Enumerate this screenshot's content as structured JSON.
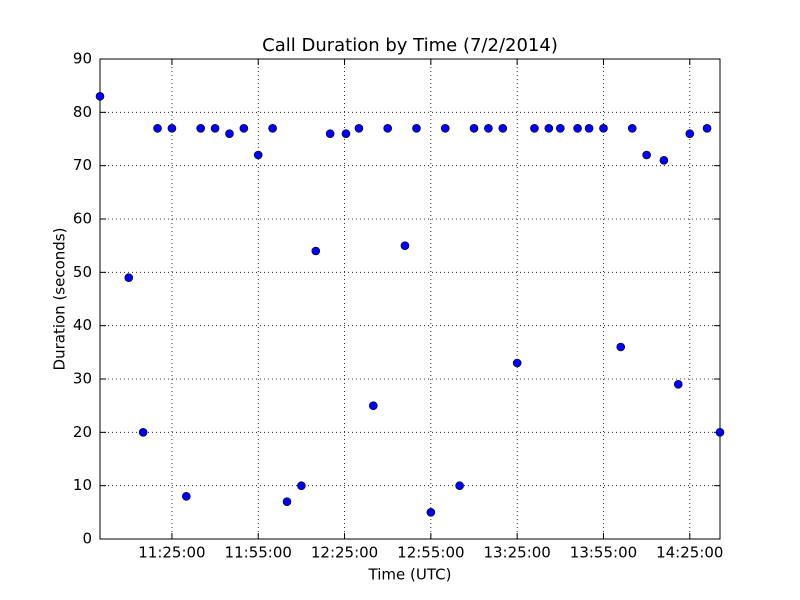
{
  "chart_data": {
    "type": "scatter",
    "title": "Call Duration by Time (7/2/2014)",
    "x_label": "Time (UTC)",
    "y_label": "Duration (seconds)",
    "color": "#0000ff",
    "grid": true,
    "x": [
      "11:00:00",
      "11:10:00",
      "11:15:00",
      "11:20:00",
      "11:25:00",
      "11:30:00",
      "11:35:00",
      "11:40:00",
      "11:45:00",
      "11:50:00",
      "11:55:00",
      "12:00:00",
      "12:05:00",
      "12:10:00",
      "12:15:00",
      "12:20:00",
      "12:25:30",
      "12:30:00",
      "12:35:00",
      "12:40:00",
      "12:46:00",
      "12:50:00",
      "12:55:00",
      "13:00:00",
      "13:05:00",
      "13:10:00",
      "13:15:00",
      "13:20:00",
      "13:25:00",
      "13:31:00",
      "13:36:00",
      "13:40:00",
      "13:46:00",
      "13:50:00",
      "13:55:00",
      "14:01:00",
      "14:05:00",
      "14:10:00",
      "14:16:00",
      "14:21:00",
      "14:25:00",
      "14:31:00",
      "14:35:30"
    ],
    "values": [
      83,
      49,
      20,
      77,
      77,
      8,
      77,
      77,
      76,
      77,
      72,
      77,
      7,
      10,
      54,
      76,
      76,
      77,
      25,
      77,
      55,
      77,
      5,
      77,
      10,
      77,
      77,
      77,
      33,
      77,
      77,
      77,
      77,
      77,
      77,
      36,
      77,
      72,
      71,
      29,
      76,
      77,
      20
    ],
    "xlim": [
      "11:00:00",
      "14:35:30"
    ],
    "xticks": [
      "11:25:00",
      "11:55:00",
      "12:25:00",
      "12:55:00",
      "13:25:00",
      "13:55:00",
      "14:25:00"
    ],
    "ylim": [
      0,
      90
    ],
    "yticks": [
      0,
      10,
      20,
      30,
      40,
      50,
      60,
      70,
      80,
      90
    ]
  }
}
